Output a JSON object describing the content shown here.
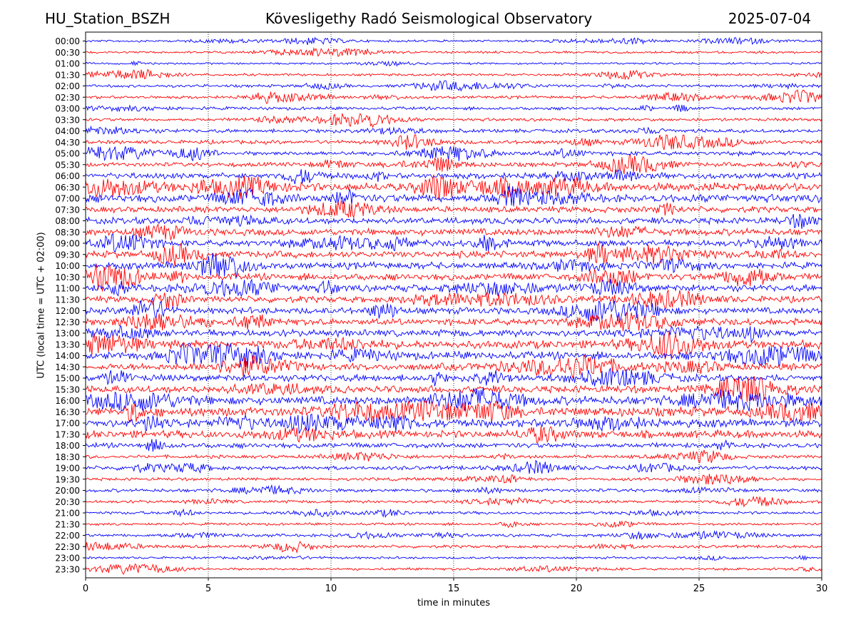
{
  "header": {
    "station": "HU_Station_BSZH",
    "title": "Kövesligethy Radó Seismological Observatory",
    "date": "2025-07-04"
  },
  "chart_data": {
    "type": "line",
    "subtype": "helicorder",
    "xlabel": "time in minutes",
    "ylabel": "UTC (local time = UTC + 02:00)",
    "xlim": [
      0,
      30
    ],
    "x_ticks": [
      0,
      5,
      10,
      15,
      20,
      25,
      30
    ],
    "grid": "vertical dotted at each x tick",
    "colors": [
      "#0000ff",
      "#ff0000"
    ],
    "color_rule": "trace colors alternate blue/red by row, starting blue at 00:00",
    "rows": [
      {
        "label": "00:00",
        "level": 0.12
      },
      {
        "label": "00:30",
        "level": 0.12
      },
      {
        "label": "01:00",
        "level": 0.1
      },
      {
        "label": "01:30",
        "level": 0.15
      },
      {
        "label": "02:00",
        "level": 0.18
      },
      {
        "label": "02:30",
        "level": 0.2
      },
      {
        "label": "03:00",
        "level": 0.22
      },
      {
        "label": "03:30",
        "level": 0.22
      },
      {
        "label": "04:00",
        "level": 0.28
      },
      {
        "label": "04:30",
        "level": 0.3
      },
      {
        "label": "05:00",
        "level": 0.35
      },
      {
        "label": "05:30",
        "level": 0.35
      },
      {
        "label": "06:00",
        "level": 0.55
      },
      {
        "label": "06:30",
        "level": 0.85
      },
      {
        "label": "07:00",
        "level": 0.8
      },
      {
        "label": "07:30",
        "level": 0.55
      },
      {
        "label": "08:00",
        "level": 0.6
      },
      {
        "label": "08:30",
        "level": 0.65
      },
      {
        "label": "09:00",
        "level": 0.6
      },
      {
        "label": "09:30",
        "level": 0.65
      },
      {
        "label": "10:00",
        "level": 0.65
      },
      {
        "label": "10:30",
        "level": 0.65
      },
      {
        "label": "11:00",
        "level": 0.65
      },
      {
        "label": "11:30",
        "level": 0.6
      },
      {
        "label": "12:00",
        "level": 0.6
      },
      {
        "label": "12:30",
        "level": 0.65
      },
      {
        "label": "13:00",
        "level": 0.65
      },
      {
        "label": "13:30",
        "level": 0.8
      },
      {
        "label": "14:00",
        "level": 0.75
      },
      {
        "label": "14:30",
        "level": 0.65
      },
      {
        "label": "15:00",
        "level": 0.65
      },
      {
        "label": "15:30",
        "level": 0.7
      },
      {
        "label": "16:00",
        "level": 0.85
      },
      {
        "label": "16:30",
        "level": 0.95
      },
      {
        "label": "17:00",
        "level": 0.8
      },
      {
        "label": "17:30",
        "level": 0.75
      },
      {
        "label": "18:00",
        "level": 0.45
      },
      {
        "label": "18:30",
        "level": 0.25
      },
      {
        "label": "19:00",
        "level": 0.3
      },
      {
        "label": "19:30",
        "level": 0.2
      },
      {
        "label": "20:00",
        "level": 0.25
      },
      {
        "label": "20:30",
        "level": 0.2
      },
      {
        "label": "21:00",
        "level": 0.2
      },
      {
        "label": "21:30",
        "level": 0.15
      },
      {
        "label": "22:00",
        "level": 0.2
      },
      {
        "label": "22:30",
        "level": 0.2
      },
      {
        "label": "23:00",
        "level": 0.12
      },
      {
        "label": "23:30",
        "level": 0.15
      }
    ]
  }
}
